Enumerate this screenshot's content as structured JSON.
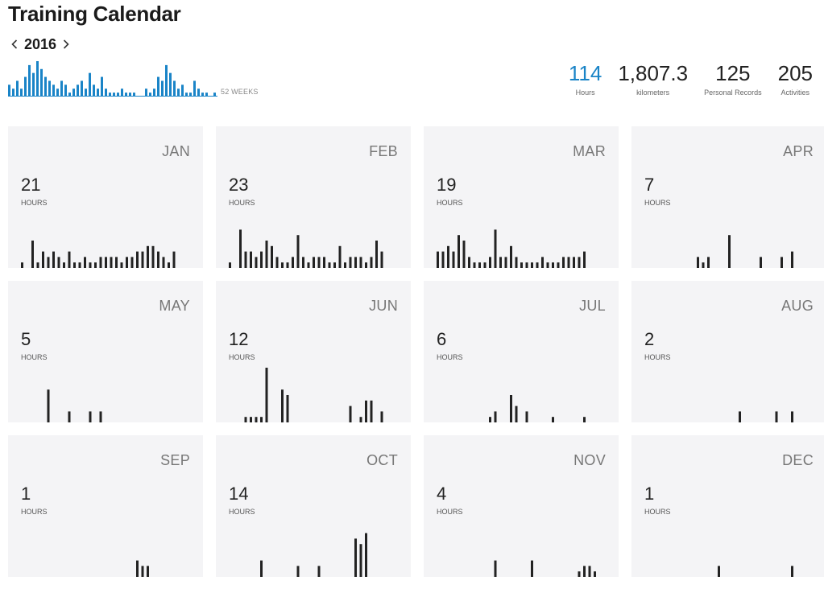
{
  "page": {
    "title": "Training Calendar"
  },
  "year_nav": {
    "year": "2016",
    "prev_icon": "chevron-left-icon",
    "next_icon": "chevron-right-icon"
  },
  "weekly": {
    "label": "52 WEEKS",
    "bar_color": "#1a84c7",
    "values": [
      3,
      2,
      4,
      2,
      5,
      8,
      6,
      9,
      7,
      5,
      4,
      3,
      2,
      4,
      3,
      1,
      2,
      3,
      4,
      2,
      6,
      3,
      2,
      5,
      2,
      1,
      1,
      1,
      2,
      1,
      1,
      1,
      0,
      0,
      2,
      1,
      2,
      5,
      4,
      8,
      6,
      4,
      2,
      3,
      1,
      1,
      4,
      2,
      1,
      1,
      0,
      1
    ]
  },
  "stats": [
    {
      "value": "114",
      "label": "Hours",
      "accent": true
    },
    {
      "value": "1,807.3",
      "label": "kilometers",
      "accent": false
    },
    {
      "value": "125",
      "label": "Personal Records",
      "accent": false
    },
    {
      "value": "205",
      "label": "Activities",
      "accent": false
    }
  ],
  "hours_label": "HOURS",
  "bar_color": "#222222",
  "months": [
    {
      "name": "JAN",
      "hours": "21",
      "days": [
        1,
        0,
        5,
        1,
        3,
        2,
        3,
        2,
        1,
        3,
        1,
        1,
        2,
        1,
        1,
        2,
        2,
        2,
        2,
        1,
        2,
        2,
        3,
        3,
        4,
        4,
        3,
        2,
        1,
        3,
        0
      ]
    },
    {
      "name": "FEB",
      "hours": "23",
      "days": [
        1,
        0,
        7,
        3,
        3,
        2,
        3,
        5,
        4,
        2,
        1,
        1,
        2,
        6,
        2,
        1,
        2,
        2,
        2,
        1,
        1,
        4,
        1,
        2,
        2,
        2,
        1,
        2,
        5,
        3
      ]
    },
    {
      "name": "MAR",
      "hours": "19",
      "days": [
        3,
        3,
        4,
        3,
        6,
        5,
        2,
        1,
        1,
        1,
        2,
        7,
        2,
        2,
        4,
        2,
        1,
        1,
        1,
        1,
        2,
        1,
        1,
        1,
        2,
        2,
        2,
        2,
        3,
        0,
        0
      ]
    },
    {
      "name": "APR",
      "hours": "7",
      "days": [
        0,
        0,
        0,
        0,
        0,
        0,
        0,
        0,
        0,
        0,
        2,
        1,
        2,
        0,
        0,
        0,
        6,
        0,
        0,
        0,
        0,
        0,
        2,
        0,
        0,
        0,
        2,
        0,
        3,
        0
      ]
    },
    {
      "name": "MAY",
      "hours": "5",
      "days": [
        0,
        0,
        0,
        0,
        0,
        6,
        0,
        0,
        0,
        2,
        0,
        0,
        0,
        2,
        0,
        2,
        0,
        0,
        0,
        0,
        0,
        0,
        0,
        0,
        0,
        0,
        0,
        0,
        0,
        0,
        0
      ]
    },
    {
      "name": "JUN",
      "hours": "12",
      "days": [
        0,
        0,
        0,
        1,
        1,
        1,
        1,
        10,
        0,
        0,
        6,
        5,
        0,
        0,
        0,
        0,
        0,
        0,
        0,
        0,
        0,
        0,
        0,
        3,
        0,
        1,
        4,
        4,
        0,
        2
      ]
    },
    {
      "name": "JUL",
      "hours": "6",
      "days": [
        0,
        0,
        0,
        0,
        0,
        0,
        0,
        0,
        0,
        0,
        1,
        2,
        0,
        0,
        5,
        3,
        0,
        2,
        0,
        0,
        0,
        0,
        1,
        0,
        0,
        0,
        0,
        0,
        1,
        0,
        0
      ]
    },
    {
      "name": "AUG",
      "hours": "2",
      "days": [
        0,
        0,
        0,
        0,
        0,
        0,
        0,
        0,
        0,
        0,
        0,
        0,
        0,
        0,
        0,
        0,
        0,
        0,
        2,
        0,
        0,
        0,
        0,
        0,
        0,
        2,
        0,
        0,
        2,
        0,
        0
      ]
    },
    {
      "name": "SEP",
      "hours": "1",
      "days": [
        0,
        0,
        0,
        0,
        0,
        0,
        0,
        0,
        0,
        0,
        0,
        0,
        0,
        0,
        0,
        0,
        0,
        0,
        0,
        0,
        0,
        0,
        3,
        2,
        2,
        0,
        0,
        0,
        0,
        0
      ]
    },
    {
      "name": "OCT",
      "hours": "14",
      "days": [
        0,
        0,
        0,
        0,
        0,
        0,
        3,
        0,
        0,
        0,
        0,
        0,
        0,
        2,
        0,
        0,
        0,
        2,
        0,
        0,
        0,
        0,
        0,
        0,
        7,
        6,
        8,
        0,
        0,
        0,
        0
      ]
    },
    {
      "name": "NOV",
      "hours": "4",
      "days": [
        0,
        0,
        0,
        0,
        0,
        0,
        0,
        0,
        0,
        0,
        0,
        3,
        0,
        0,
        0,
        0,
        0,
        0,
        3,
        0,
        0,
        0,
        0,
        0,
        0,
        0,
        0,
        1,
        2,
        2,
        1
      ]
    },
    {
      "name": "DEC",
      "hours": "1",
      "days": [
        0,
        0,
        0,
        0,
        0,
        0,
        0,
        0,
        0,
        0,
        0,
        0,
        0,
        0,
        2,
        0,
        0,
        0,
        0,
        0,
        0,
        0,
        0,
        0,
        0,
        0,
        0,
        0,
        2,
        0,
        0
      ]
    }
  ]
}
